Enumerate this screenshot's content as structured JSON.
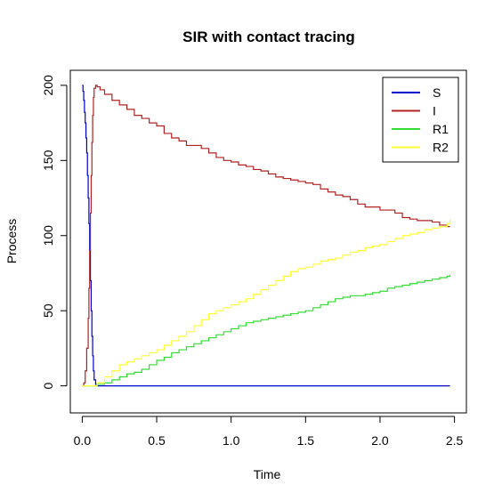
{
  "chart_data": {
    "type": "line",
    "title": "SIR with contact tracing",
    "xlabel": "Time",
    "ylabel": "Process",
    "xlim": [
      -0.08,
      2.58
    ],
    "ylim": [
      -18,
      210
    ],
    "xticks": [
      "0.0",
      "0.5",
      "1.0",
      "1.5",
      "2.0",
      "2.5"
    ],
    "xtick_values": [
      0.0,
      0.5,
      1.0,
      1.5,
      2.0,
      2.5
    ],
    "yticks": [
      "0",
      "50",
      "100",
      "150",
      "200"
    ],
    "ytick_values": [
      0,
      50,
      100,
      150,
      200
    ],
    "legend_position": "top-right",
    "grid": false,
    "series": [
      {
        "name": "S",
        "color": "#0000cc",
        "x": [
          0.0,
          0.005,
          0.01,
          0.015,
          0.02,
          0.025,
          0.03,
          0.035,
          0.04,
          0.045,
          0.05,
          0.055,
          0.06,
          0.065,
          0.07,
          0.075,
          0.08,
          0.09,
          0.1,
          2.47
        ],
        "y": [
          200,
          196,
          190,
          182,
          175,
          165,
          155,
          140,
          125,
          108,
          90,
          70,
          50,
          33,
          20,
          10,
          4,
          1,
          0,
          0
        ]
      },
      {
        "name": "I",
        "color": "#b22222",
        "x": [
          0.0,
          0.01,
          0.02,
          0.03,
          0.04,
          0.045,
          0.05,
          0.055,
          0.06,
          0.065,
          0.07,
          0.075,
          0.08,
          0.09,
          0.1,
          0.12,
          0.15,
          0.2,
          0.25,
          0.3,
          0.35,
          0.4,
          0.45,
          0.5,
          0.55,
          0.6,
          0.65,
          0.7,
          0.75,
          0.8,
          0.85,
          0.9,
          0.95,
          1.0,
          1.05,
          1.1,
          1.15,
          1.2,
          1.25,
          1.3,
          1.35,
          1.4,
          1.45,
          1.5,
          1.55,
          1.6,
          1.65,
          1.7,
          1.75,
          1.8,
          1.85,
          1.9,
          1.95,
          2.0,
          2.05,
          2.1,
          2.15,
          2.2,
          2.25,
          2.3,
          2.35,
          2.4,
          2.45,
          2.47
        ],
        "y": [
          0,
          2,
          10,
          25,
          45,
          65,
          90,
          115,
          140,
          162,
          180,
          192,
          198,
          200,
          199,
          197,
          194,
          190,
          187,
          184,
          180,
          178,
          175,
          173,
          168,
          165,
          163,
          160,
          160,
          158,
          155,
          152,
          150,
          149,
          147,
          146,
          144,
          143,
          141,
          139,
          138,
          137,
          136,
          135,
          134,
          131,
          129,
          127,
          126,
          124,
          121,
          119,
          119,
          117,
          117,
          115,
          112,
          111,
          110,
          110,
          109,
          107,
          106,
          106
        ]
      },
      {
        "name": "R1",
        "color": "#33dd33",
        "x": [
          0.0,
          0.08,
          0.1,
          0.15,
          0.2,
          0.25,
          0.3,
          0.35,
          0.4,
          0.45,
          0.5,
          0.55,
          0.6,
          0.65,
          0.7,
          0.75,
          0.8,
          0.85,
          0.9,
          0.95,
          1.0,
          1.05,
          1.1,
          1.15,
          1.2,
          1.25,
          1.3,
          1.35,
          1.4,
          1.45,
          1.5,
          1.55,
          1.6,
          1.65,
          1.7,
          1.75,
          1.8,
          1.85,
          1.9,
          1.95,
          2.0,
          2.05,
          2.1,
          2.15,
          2.2,
          2.25,
          2.3,
          2.35,
          2.4,
          2.45,
          2.47
        ],
        "y": [
          0,
          0,
          1,
          2,
          4,
          6,
          8,
          9,
          11,
          14,
          17,
          19,
          22,
          24,
          26,
          28,
          30,
          32,
          34,
          36,
          38,
          40,
          42,
          43,
          44,
          45,
          46,
          47,
          48,
          49,
          50,
          52,
          54,
          56,
          58,
          59,
          60,
          60,
          61,
          62,
          63,
          65,
          66,
          67,
          68,
          69,
          70,
          71,
          72,
          73,
          74
        ]
      },
      {
        "name": "R2",
        "color": "#ffff33",
        "x": [
          0.0,
          0.08,
          0.1,
          0.15,
          0.2,
          0.25,
          0.3,
          0.35,
          0.4,
          0.45,
          0.5,
          0.55,
          0.6,
          0.65,
          0.7,
          0.75,
          0.8,
          0.85,
          0.9,
          0.95,
          1.0,
          1.05,
          1.1,
          1.15,
          1.2,
          1.25,
          1.3,
          1.35,
          1.4,
          1.45,
          1.5,
          1.55,
          1.6,
          1.65,
          1.7,
          1.75,
          1.8,
          1.85,
          1.9,
          1.95,
          2.0,
          2.05,
          2.1,
          2.15,
          2.2,
          2.25,
          2.3,
          2.35,
          2.4,
          2.45,
          2.47
        ],
        "y": [
          0,
          0,
          2,
          6,
          10,
          14,
          16,
          18,
          20,
          22,
          24,
          27,
          30,
          33,
          36,
          40,
          44,
          48,
          50,
          52,
          54,
          56,
          58,
          61,
          64,
          67,
          70,
          73,
          76,
          78,
          79,
          81,
          83,
          84,
          85,
          87,
          89,
          90,
          92,
          93,
          94,
          96,
          98,
          100,
          101,
          102,
          104,
          105,
          106,
          108,
          111
        ]
      }
    ]
  }
}
